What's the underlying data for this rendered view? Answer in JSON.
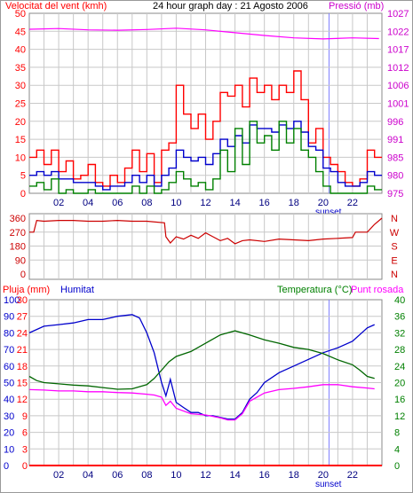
{
  "chart_data": [
    {
      "type": "line",
      "title": "24 hour graph day : 21 Agosto 2006",
      "ylabel": "Velocitat del vent (kmh)",
      "y2label": "Pressió (mb)",
      "ylim": [
        0,
        50
      ],
      "y2lim": [
        975,
        1027
      ],
      "xlim": [
        0,
        24
      ],
      "x_ticks": [
        "02",
        "04",
        "06",
        "08",
        "10",
        "12",
        "14",
        "16",
        "18",
        "20",
        "22"
      ],
      "y_ticks": [
        "0",
        "5",
        "10",
        "15",
        "20",
        "25",
        "30",
        "35",
        "40",
        "45",
        "50"
      ],
      "y2_ticks": [
        "975",
        "980",
        "985",
        "991",
        "996",
        "1001",
        "1006",
        "1012",
        "1017",
        "1022",
        "1027"
      ],
      "sunset_label": "sunset",
      "series": [
        {
          "key": "gust",
          "color": "#ff0000",
          "axis": "left",
          "x": [
            0,
            0.5,
            1,
            1.5,
            2,
            2.5,
            3,
            3.5,
            4,
            4.5,
            5,
            5.5,
            6,
            6.5,
            7,
            7.5,
            8,
            8.5,
            9,
            9.5,
            10,
            10.5,
            11,
            11.5,
            12,
            12.5,
            13,
            13.5,
            14,
            14.5,
            15,
            15.5,
            16,
            16.5,
            17,
            17.5,
            18,
            18.5,
            19,
            19.5,
            20,
            20.5,
            21,
            21.5,
            22,
            22.5,
            23,
            23.5
          ],
          "values": [
            10,
            12,
            8,
            12,
            6,
            9,
            4,
            5,
            8,
            3,
            2,
            5,
            3,
            7,
            12,
            6,
            11,
            3,
            12,
            14,
            30,
            22,
            18,
            22,
            15,
            20,
            28,
            27,
            30,
            24,
            32,
            28,
            30,
            26,
            30,
            28,
            34,
            26,
            14,
            18,
            10,
            8,
            6,
            3,
            2,
            4,
            12,
            10
          ]
        },
        {
          "key": "average",
          "color": "#0000cc",
          "axis": "left",
          "x": [
            0,
            0.5,
            1,
            1.5,
            2,
            2.5,
            3,
            3.5,
            4,
            4.5,
            5,
            5.5,
            6,
            6.5,
            7,
            7.5,
            8,
            8.5,
            9,
            9.5,
            10,
            10.5,
            11,
            11.5,
            12,
            12.5,
            13,
            13.5,
            14,
            14.5,
            15,
            15.5,
            16,
            16.5,
            17,
            17.5,
            18,
            18.5,
            19,
            19.5,
            20,
            20.5,
            21,
            21.5,
            22,
            22.5,
            23,
            23.5
          ],
          "values": [
            5,
            6,
            5,
            6,
            4,
            4,
            3,
            3,
            3,
            2,
            1,
            2,
            2,
            3,
            5,
            3,
            5,
            2,
            5,
            7,
            12,
            10,
            9,
            10,
            8,
            11,
            15,
            13,
            16,
            14,
            19,
            18,
            18,
            17,
            19,
            18,
            20,
            17,
            13,
            12,
            7,
            6,
            3,
            2,
            2,
            3,
            6,
            5
          ]
        },
        {
          "key": "minimum",
          "color": "#008000",
          "axis": "left",
          "x": [
            0,
            0.5,
            1,
            1.5,
            2,
            2.5,
            3,
            3.5,
            4,
            4.5,
            5,
            5.5,
            6,
            6.5,
            7,
            7.5,
            8,
            8.5,
            9,
            9.5,
            10,
            10.5,
            11,
            11.5,
            12,
            12.5,
            13,
            13.5,
            14,
            14.5,
            15,
            15.5,
            16,
            16.5,
            17,
            17.5,
            18,
            18.5,
            19,
            19.5,
            20,
            20.5,
            21,
            21.5,
            22,
            22.5,
            23,
            23.5
          ],
          "values": [
            2,
            3,
            1,
            4,
            0,
            1,
            0,
            0,
            1,
            0,
            0,
            0,
            0,
            0,
            2,
            0,
            2,
            0,
            1,
            3,
            6,
            4,
            2,
            3,
            1,
            4,
            12,
            6,
            18,
            8,
            20,
            14,
            16,
            12,
            20,
            14,
            18,
            12,
            10,
            6,
            2,
            0,
            0,
            0,
            0,
            0,
            2,
            1
          ]
        },
        {
          "key": "pressure",
          "color": "#ff00ff",
          "axis": "right",
          "x": [
            0,
            2,
            4,
            6,
            8,
            10,
            12,
            14,
            16,
            18,
            20,
            22,
            23.8
          ],
          "values": [
            1022.4,
            1022.6,
            1022.2,
            1022.1,
            1022.3,
            1022.7,
            1022.2,
            1021.4,
            1020.6,
            1019.9,
            1019.6,
            1019.9,
            1019.7
          ]
        }
      ]
    },
    {
      "type": "line",
      "y_ticks": [
        "360",
        "270",
        "180",
        "90",
        "0"
      ],
      "ylim": [
        0,
        360
      ],
      "compass_labels": [
        "N",
        "W",
        "S",
        "E",
        "N"
      ],
      "series": [
        {
          "key": "direction",
          "color": "#cc0000",
          "x": [
            0,
            0.3,
            0.5,
            1,
            2,
            3,
            4,
            5,
            6,
            7,
            8,
            9.2,
            9.3,
            9.6,
            10,
            10.5,
            11,
            11.5,
            12,
            12.5,
            13,
            13.5,
            14,
            14.5,
            15,
            16,
            17,
            18,
            19,
            20,
            21,
            22,
            22.2,
            23,
            23.5,
            24
          ],
          "values": [
            270,
            270,
            345,
            340,
            345,
            345,
            340,
            340,
            345,
            340,
            340,
            330,
            240,
            200,
            240,
            225,
            250,
            230,
            265,
            240,
            215,
            230,
            195,
            215,
            220,
            210,
            225,
            220,
            215,
            225,
            230,
            235,
            270,
            270,
            320,
            360
          ]
        }
      ]
    },
    {
      "type": "line",
      "left_title": "Pluja (mm)",
      "left2_title": "Humitat",
      "right_title": "Temperatura (°C)",
      "right2_title": "Punt rosada",
      "ylim_rain": [
        0,
        30
      ],
      "ylim_humidity": [
        0,
        100
      ],
      "ylim_temperature": [
        0,
        40
      ],
      "rain_ticks": [
        "30",
        "27",
        "24",
        "21",
        "18",
        "15",
        "12",
        "9",
        "6",
        "3",
        "0"
      ],
      "humidity_ticks": [
        "100",
        "90",
        "80",
        "70",
        "60",
        "50",
        "40",
        "30",
        "20",
        "10",
        "0"
      ],
      "temperature_ticks": [
        "40",
        "36",
        "32",
        "28",
        "24",
        "20",
        "16",
        "12",
        "8",
        "4",
        "0"
      ],
      "series": [
        {
          "key": "humidity",
          "color": "#0000cc",
          "axis": "humidity",
          "x": [
            0,
            1,
            2,
            3,
            4,
            5,
            6,
            7,
            7.5,
            8,
            8.5,
            9,
            9.3,
            9.6,
            10,
            10.5,
            11,
            11.5,
            12,
            12.5,
            13,
            13.5,
            14,
            14.5,
            15,
            15.5,
            16,
            17,
            18,
            19,
            20,
            21,
            22,
            22.5,
            23,
            23.5
          ],
          "values": [
            80,
            84,
            85,
            86,
            88,
            88,
            90,
            91,
            89,
            80,
            68,
            50,
            42,
            52,
            38,
            35,
            32,
            32,
            30,
            30,
            29,
            28,
            28,
            32,
            40,
            44,
            50,
            56,
            60,
            64,
            68,
            71,
            75,
            79,
            83,
            85
          ]
        },
        {
          "key": "temperature",
          "color": "#006600",
          "axis": "temperature",
          "x": [
            0,
            0.5,
            1,
            2,
            3,
            4,
            5,
            6,
            7,
            8,
            8.5,
            9,
            9.5,
            10,
            11,
            12,
            13,
            14,
            15,
            16,
            17,
            18,
            19,
            20,
            21,
            22,
            22.5,
            23,
            23.5
          ],
          "values": [
            21.5,
            20.5,
            20,
            19.7,
            19.4,
            19.2,
            18.8,
            18.4,
            18.5,
            19.5,
            21,
            23,
            25,
            26.3,
            27.5,
            29.5,
            31.5,
            32.5,
            31.5,
            30.3,
            29.5,
            28.5,
            28,
            27,
            25.5,
            24.3,
            23,
            21.5,
            21
          ]
        },
        {
          "key": "dew_point",
          "color": "#ff00ff",
          "axis": "temperature",
          "x": [
            0,
            1,
            2,
            3,
            4,
            5,
            6,
            7,
            8,
            8.5,
            9,
            9.3,
            9.6,
            10,
            11,
            12,
            13,
            13.5,
            14,
            14.5,
            15,
            16,
            17,
            18,
            19,
            20,
            21,
            22,
            23,
            23.5
          ],
          "values": [
            18.3,
            18.2,
            18,
            18,
            17.8,
            17.8,
            17.6,
            17.5,
            17.2,
            17,
            16.5,
            14.5,
            15.5,
            13.8,
            12.5,
            12.2,
            11.5,
            11,
            11,
            12.5,
            15.5,
            17.5,
            18.3,
            18.6,
            19,
            19.5,
            19.5,
            19,
            18.7,
            18.5
          ]
        },
        {
          "key": "rain",
          "color": "#ff0000",
          "axis": "rain",
          "x": [
            0,
            24
          ],
          "values": [
            0,
            0
          ]
        }
      ]
    }
  ]
}
